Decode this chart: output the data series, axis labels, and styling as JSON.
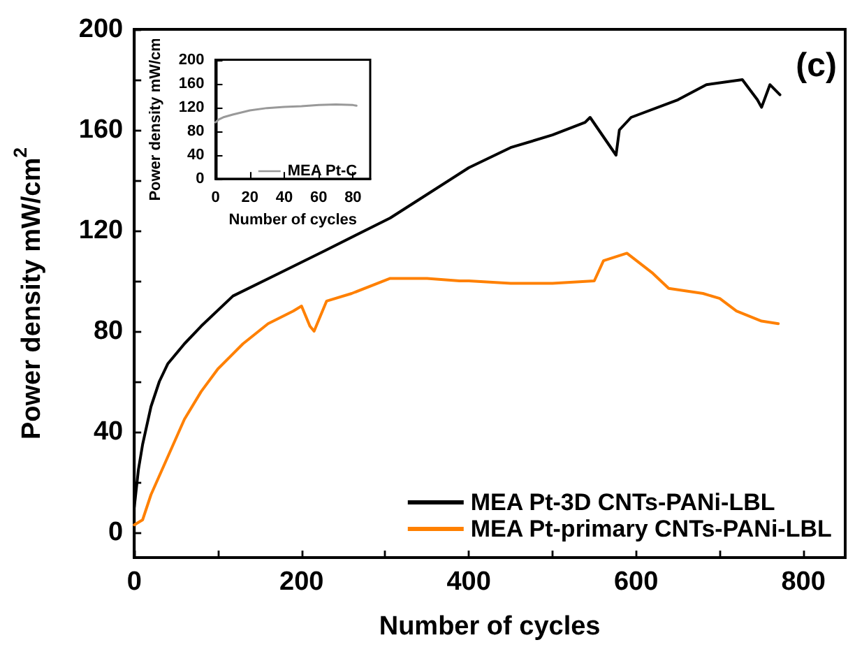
{
  "chart_data": [
    {
      "type": "line",
      "xlabel": "Number of cycles",
      "ylabel": "Power density mW/cm$^{2}$",
      "annotations": [
        "(c)"
      ],
      "xlim": [
        0,
        850
      ],
      "xticks": [
        0,
        {
          "value": 100,
          "label": null
        },
        200,
        {
          "value": 300,
          "label": null
        },
        400,
        {
          "value": 500,
          "label": null
        },
        600,
        {
          "value": 700,
          "label": null
        },
        800
      ],
      "ylim": [
        -10,
        200
      ],
      "yticks": [
        0,
        {
          "value": 20,
          "label": null
        },
        40,
        {
          "value": 60,
          "label": null
        },
        80,
        {
          "value": 100,
          "label": null
        },
        120,
        {
          "value": 140,
          "label": null
        },
        160,
        {
          "value": 180,
          "label": null
        },
        200
      ],
      "grid": false,
      "legend": "bottom right",
      "marker": "none",
      "line_style": "solid",
      "series": [
        {
          "name": "MEA Pt-3D CNTs-PANi-LBL",
          "color": "#000000",
          "x": [
            0,
            5,
            10,
            20,
            30,
            40,
            60,
            80,
            118,
            173,
            228,
            306,
            339,
            400,
            450,
            500,
            539,
            545,
            576,
            580,
            594,
            650,
            684,
            727,
            745,
            750,
            760,
            772
          ],
          "values": [
            10,
            25,
            35,
            50,
            60,
            67,
            75,
            82,
            94,
            103,
            112,
            125,
            132,
            145,
            153,
            158,
            163,
            165,
            150,
            160,
            165,
            172,
            178,
            180,
            172,
            169,
            178,
            174
          ]
        },
        {
          "name": "MEA Pt-primary CNTs-PANi-LBL",
          "color": "#ff8000",
          "x": [
            0,
            10,
            20,
            40,
            60,
            80,
            100,
            130,
            160,
            190,
            200,
            210,
            215,
            230,
            260,
            306,
            350,
            389,
            400,
            450,
            500,
            550,
            561,
            589,
            620,
            639,
            680,
            700,
            720,
            750,
            770
          ],
          "values": [
            3,
            5,
            15,
            30,
            45,
            56,
            65,
            75,
            83,
            88,
            90,
            82,
            80,
            92,
            95,
            101,
            101,
            100,
            100,
            99,
            99,
            100,
            108,
            111,
            103,
            97,
            95,
            93,
            88,
            84,
            83
          ]
        }
      ]
    },
    {
      "type": "line",
      "xlabel": "Number of cycles",
      "ylabel": "Power density mW/cm",
      "xlim": [
        0,
        90
      ],
      "xticks": [
        0,
        20,
        40,
        60,
        80
      ],
      "ylim": [
        0,
        200
      ],
      "yticks": [
        0,
        40,
        80,
        120,
        160,
        200
      ],
      "grid": false,
      "legend": "bottom right",
      "marker": "none",
      "line_style": "solid",
      "series": [
        {
          "name": "MEA Pt-C",
          "color": "#999999",
          "x": [
            0,
            2,
            5,
            10,
            20,
            30,
            40,
            50,
            60,
            70,
            80,
            82
          ],
          "values": [
            95,
            100,
            104,
            108,
            115,
            119,
            121,
            122,
            124,
            125,
            124,
            123
          ]
        }
      ]
    }
  ]
}
